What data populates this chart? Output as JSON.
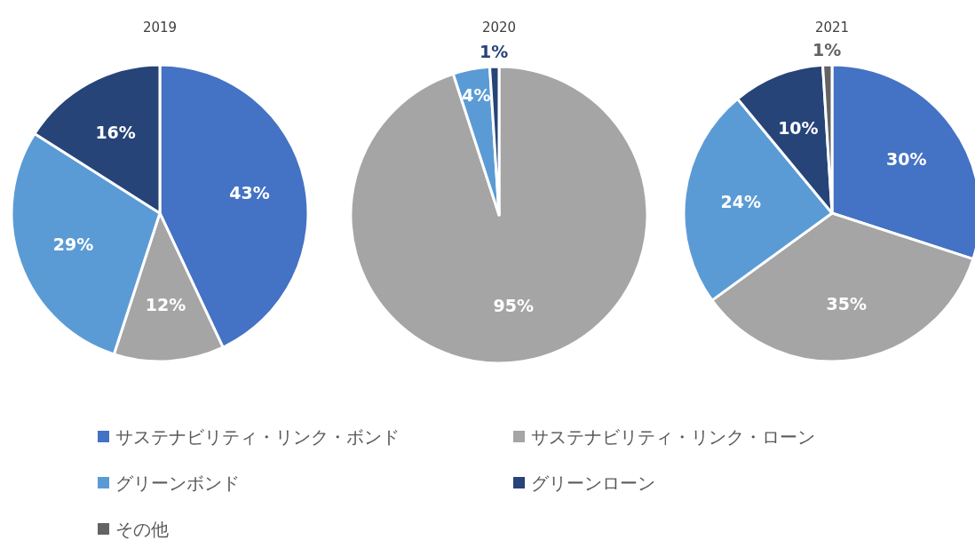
{
  "chart_data": [
    {
      "type": "pie",
      "title": "2019",
      "legend": "bottom",
      "categories": [
        "サステナビリティ・リンク・ボンド",
        "サステナビリティ・リンク・ローン",
        "グリーンボンド",
        "グリーンローン",
        "その他"
      ],
      "values": [
        43,
        12,
        29,
        16,
        0
      ],
      "colors": [
        "#4472c4",
        "#a5a5a5",
        "#5b9bd5",
        "#264478",
        "#636363"
      ],
      "value_labels": [
        "43%",
        "12%",
        "29%",
        "16%",
        null
      ]
    },
    {
      "type": "pie",
      "title": "2020",
      "values": [
        0,
        95,
        4,
        1,
        0
      ],
      "value_labels": [
        null,
        "95%",
        "4%",
        "1%",
        null
      ]
    },
    {
      "type": "pie",
      "title": "2021",
      "values": [
        30,
        35,
        24,
        10,
        1
      ],
      "value_labels": [
        "30%",
        "35%",
        "24%",
        "10%",
        "1%"
      ]
    }
  ]
}
